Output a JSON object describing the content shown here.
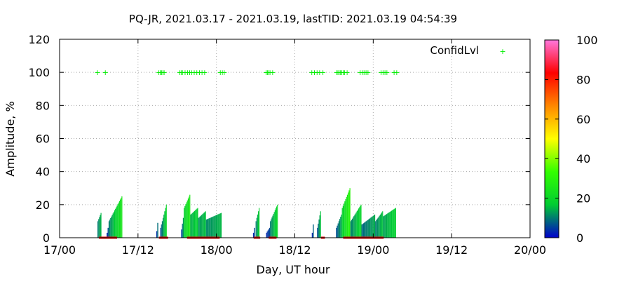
{
  "chart_data": {
    "type": "bar",
    "title": "PQ-JR, 2021.03.17 - 2021.03.19, lastTID: 2021.03.19 04:54:39",
    "xlabel": "Day, UT hour",
    "ylabel": "Amplitude, %",
    "xlim": [
      0,
      72
    ],
    "ylim": [
      0,
      120
    ],
    "x_ticks": [
      "17/00",
      "17/12",
      "18/00",
      "18/12",
      "19/00",
      "19/12",
      "20/00"
    ],
    "y_ticks": [
      "0",
      "20",
      "40",
      "60",
      "80",
      "100",
      "120"
    ],
    "grid": true,
    "legend": {
      "label": "ConfidLvl",
      "position": "top-right"
    },
    "colorbar": {
      "ticks": [
        "0",
        "20",
        "40",
        "60",
        "80",
        "100"
      ],
      "range": [
        0,
        100
      ],
      "colors": [
        "#0000cc",
        "#00cc33",
        "#33ff00",
        "#ffff00",
        "#ff8800",
        "#ff0000",
        "#ff77dd"
      ]
    },
    "series": [
      {
        "type": "amplitude-bars",
        "segments": [
          [
            5.8,
            6.4,
            10,
            15
          ],
          [
            7.2,
            7.5,
            3,
            6
          ],
          [
            7.5,
            9.6,
            10,
            25
          ],
          [
            14.8,
            15.1,
            4,
            9
          ],
          [
            15.4,
            16.4,
            6,
            20
          ],
          [
            18.6,
            19.0,
            5,
            12
          ],
          [
            19.0,
            20.0,
            18,
            26
          ],
          [
            20.0,
            21.2,
            14,
            18
          ],
          [
            21.2,
            22.4,
            12,
            16
          ],
          [
            22.4,
            24.8,
            11,
            15
          ],
          [
            29.6,
            29.9,
            3,
            6
          ],
          [
            30.0,
            30.6,
            10,
            18
          ],
          [
            31.6,
            32.2,
            3,
            6
          ],
          [
            32.2,
            33.4,
            10,
            20
          ],
          [
            38.6,
            38.9,
            3,
            8
          ],
          [
            39.4,
            40.0,
            6,
            16
          ],
          [
            42.3,
            43.2,
            6,
            14
          ],
          [
            43.2,
            44.5,
            18,
            30
          ],
          [
            44.5,
            46.2,
            10,
            20
          ],
          [
            46.2,
            48.3,
            8,
            14
          ],
          [
            48.3,
            49.5,
            10,
            16
          ],
          [
            49.5,
            51.5,
            13,
            18
          ]
        ]
      },
      {
        "name": "ConfidLvl",
        "type": "points",
        "value": 100,
        "x": [
          5.8,
          7.0,
          15.2,
          15.4,
          15.6,
          15.8,
          16.0,
          18.4,
          18.6,
          18.8,
          19.2,
          19.6,
          19.9,
          20.2,
          20.6,
          21.0,
          21.4,
          21.8,
          22.2,
          24.6,
          24.9,
          25.2,
          31.6,
          31.8,
          32.0,
          32.2,
          32.6,
          38.6,
          39.0,
          39.4,
          39.8,
          40.3,
          42.4,
          42.6,
          42.8,
          43.0,
          43.2,
          43.4,
          43.6,
          44.0,
          46.0,
          46.3,
          46.6,
          46.9,
          47.2,
          49.2,
          49.5,
          49.8,
          50.1,
          51.2,
          51.6
        ]
      }
    ],
    "markers_at_zero": [
      [
        6.0,
        8.8
      ],
      [
        15.2,
        16.6
      ],
      [
        19.5,
        24.5
      ],
      [
        29.7,
        30.7
      ],
      [
        32.0,
        33.2
      ],
      [
        40.0,
        40.6
      ],
      [
        43.4,
        49.6
      ]
    ]
  }
}
